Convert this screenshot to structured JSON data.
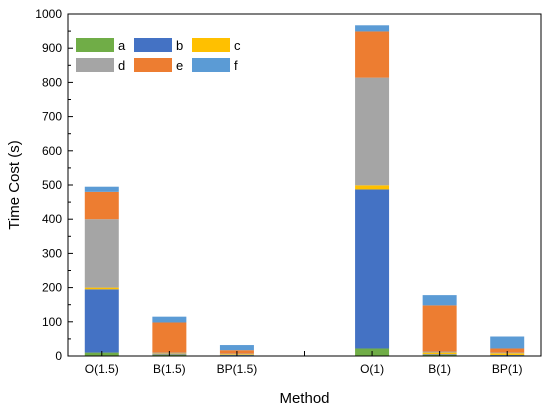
{
  "chart_data": {
    "type": "bar",
    "stacked": true,
    "title": "",
    "xlabel": "Method",
    "ylabel": "Time Cost (s)",
    "ylim": [
      0,
      1000
    ],
    "yticks": [
      0,
      100,
      200,
      300,
      400,
      500,
      600,
      700,
      800,
      900,
      1000
    ],
    "grid": false,
    "legend_position": "top-left",
    "categories": [
      "O(1.5)",
      "B(1.5)",
      "BP(1.5)",
      "",
      "O(1)",
      "B(1)",
      "BP(1)"
    ],
    "series": [
      {
        "name": "a",
        "color": "#70AD47",
        "values": [
          10,
          3,
          2,
          null,
          22,
          3,
          2
        ]
      },
      {
        "name": "b",
        "color": "#4472C4",
        "values": [
          185,
          2,
          1,
          null,
          465,
          2,
          1
        ]
      },
      {
        "name": "c",
        "color": "#FFC000",
        "values": [
          5,
          2,
          2,
          null,
          12,
          5,
          5
        ]
      },
      {
        "name": "d",
        "color": "#A5A5A5",
        "values": [
          200,
          3,
          2,
          null,
          315,
          3,
          2
        ]
      },
      {
        "name": "e",
        "color": "#ED7D31",
        "values": [
          80,
          88,
          10,
          null,
          135,
          135,
          12
        ]
      },
      {
        "name": "f",
        "color": "#5B9BD5",
        "values": [
          15,
          17,
          15,
          null,
          18,
          30,
          35
        ]
      }
    ]
  }
}
